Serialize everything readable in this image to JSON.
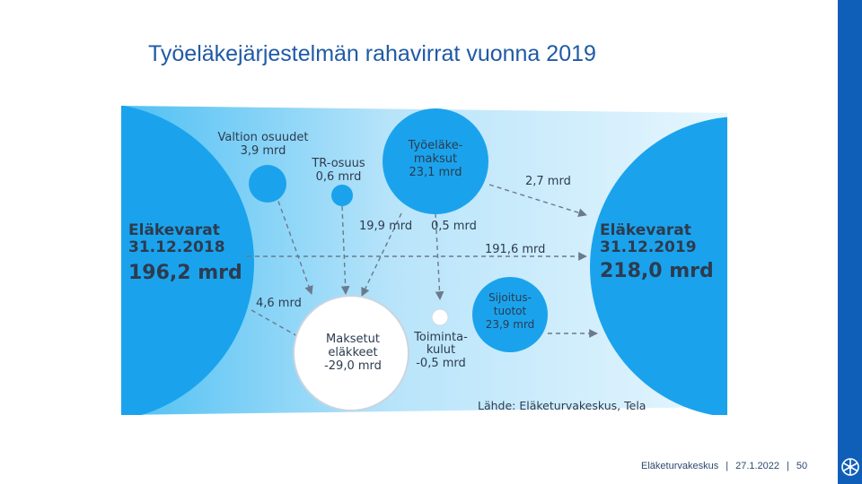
{
  "title": "Työeläkejärjestelmän rahavirrat vuonna 2019",
  "diagram": {
    "start_fund": {
      "label1": "Eläkevarat",
      "label2": "31.12.2018",
      "value": "196,2 mrd"
    },
    "end_fund": {
      "label1": "Eläkevarat",
      "label2": "31.12.2019",
      "value": "218,0 mrd"
    },
    "state_share": {
      "line1": "Valtion osuudet",
      "line2": "3,9 mrd"
    },
    "tr_share": {
      "line1": "TR-osuus",
      "line2": "0,6 mrd"
    },
    "contributions": {
      "line1": "Työeläke-",
      "line2": "maksut",
      "line3": "23,1 mrd"
    },
    "investment_returns": {
      "line1": "Sijoitus-",
      "line2": "tuotot",
      "line3": "23,9 mrd"
    },
    "paid_pensions": {
      "line1": "Maksetut",
      "line2": "eläkkeet",
      "line3": "-29,0 mrd"
    },
    "operating_costs": {
      "line1": "Toiminta-",
      "line2": "kulut",
      "line3": "-0,5 mrd"
    },
    "flows": {
      "contrib_to_end": "2,7 mrd",
      "contrib_to_pensions": "19,9 mrd",
      "contrib_to_costs": "0,5 mrd",
      "fund_through": "191,6 mrd",
      "fund_to_pensions": "4,6 mrd"
    },
    "source": "Lähde: Eläketurvakeskus, Tela"
  },
  "footer": {
    "org": "Eläketurvakeskus",
    "date": "27.1.2022",
    "page": "50"
  },
  "colors": {
    "brand": "#0f5fb8",
    "circle": "#1aa3ec",
    "title": "#1f5aa5",
    "text": "#2d3b4f"
  }
}
